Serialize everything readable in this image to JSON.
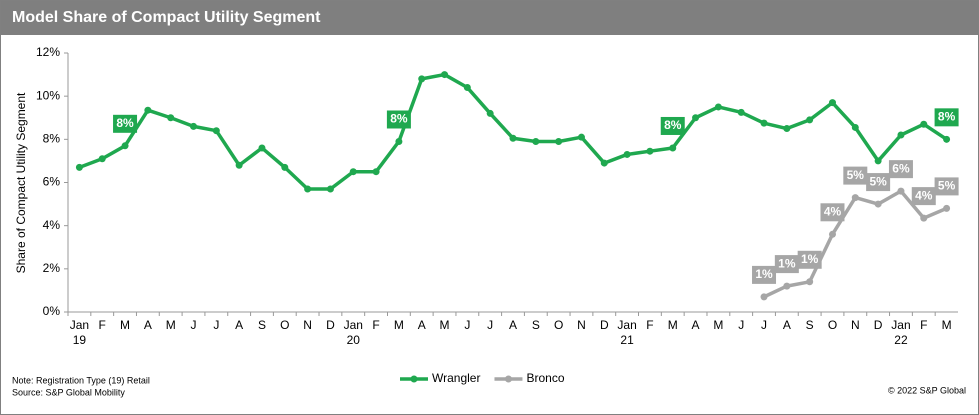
{
  "chart_data": {
    "type": "line",
    "title": "Model Share of Compact Utility Segment",
    "y_label": "Share of Compact Utility Segment",
    "categories": [
      "Jan",
      "F",
      "M",
      "A",
      "M",
      "J",
      "J",
      "A",
      "S",
      "O",
      "N",
      "D",
      "Jan",
      "F",
      "M",
      "A",
      "M",
      "J",
      "J",
      "A",
      "S",
      "O",
      "N",
      "D",
      "Jan",
      "F",
      "M",
      "A",
      "M",
      "J",
      "J",
      "A",
      "S",
      "O",
      "N",
      "D",
      "Jan",
      "F",
      "M"
    ],
    "years": [
      "19",
      null,
      null,
      null,
      null,
      null,
      null,
      null,
      null,
      null,
      null,
      null,
      "20",
      null,
      null,
      null,
      null,
      null,
      null,
      null,
      null,
      null,
      null,
      null,
      "21",
      null,
      null,
      null,
      null,
      null,
      null,
      null,
      null,
      null,
      null,
      null,
      "22",
      null,
      null
    ],
    "series": [
      {
        "name": "Wrangler",
        "color": "#1fa84f",
        "values": [
          6.7,
          7.1,
          7.7,
          9.35,
          9.0,
          8.6,
          8.4,
          6.8,
          7.6,
          6.7,
          5.7,
          5.7,
          6.5,
          6.5,
          7.9,
          10.8,
          11.0,
          10.4,
          9.2,
          8.05,
          7.9,
          7.9,
          8.1,
          6.9,
          7.3,
          7.45,
          7.6,
          9.0,
          9.5,
          9.25,
          8.75,
          8.5,
          8.9,
          9.7,
          8.55,
          7.0,
          8.2,
          8.7,
          8.0
        ],
        "value_labels": [
          null,
          null,
          "8%",
          null,
          null,
          null,
          null,
          null,
          null,
          null,
          null,
          null,
          null,
          null,
          "8%",
          null,
          null,
          null,
          null,
          null,
          null,
          null,
          null,
          null,
          null,
          null,
          "8%",
          null,
          null,
          null,
          null,
          null,
          null,
          null,
          null,
          null,
          null,
          null,
          "8%"
        ]
      },
      {
        "name": "Bronco",
        "color": "#a6a6a6",
        "values": [
          null,
          null,
          null,
          null,
          null,
          null,
          null,
          null,
          null,
          null,
          null,
          null,
          null,
          null,
          null,
          null,
          null,
          null,
          null,
          null,
          null,
          null,
          null,
          null,
          null,
          null,
          null,
          null,
          null,
          null,
          0.7,
          1.2,
          1.4,
          3.6,
          5.3,
          5.0,
          5.6,
          4.35,
          4.8
        ],
        "value_labels": [
          null,
          null,
          null,
          null,
          null,
          null,
          null,
          null,
          null,
          null,
          null,
          null,
          null,
          null,
          null,
          null,
          null,
          null,
          null,
          null,
          null,
          null,
          null,
          null,
          null,
          null,
          null,
          null,
          null,
          null,
          "1%",
          "1%",
          "1%",
          "4%",
          "5%",
          "5%",
          "6%",
          "4%",
          "5%"
        ]
      }
    ],
    "ylim": [
      0,
      12
    ],
    "yticks": [
      {
        "value": 0,
        "label": "0%"
      },
      {
        "value": 2,
        "label": "2%"
      },
      {
        "value": 4,
        "label": "4%"
      },
      {
        "value": 6,
        "label": "6%"
      },
      {
        "value": 8,
        "label": "8%"
      },
      {
        "value": 10,
        "label": "10%"
      },
      {
        "value": 12,
        "label": "12%"
      }
    ],
    "notes": [
      "Note: Registration Type (19) Retail",
      "Source: S&P Global Mobility"
    ],
    "copyright": "© 2022 S&P Global"
  }
}
